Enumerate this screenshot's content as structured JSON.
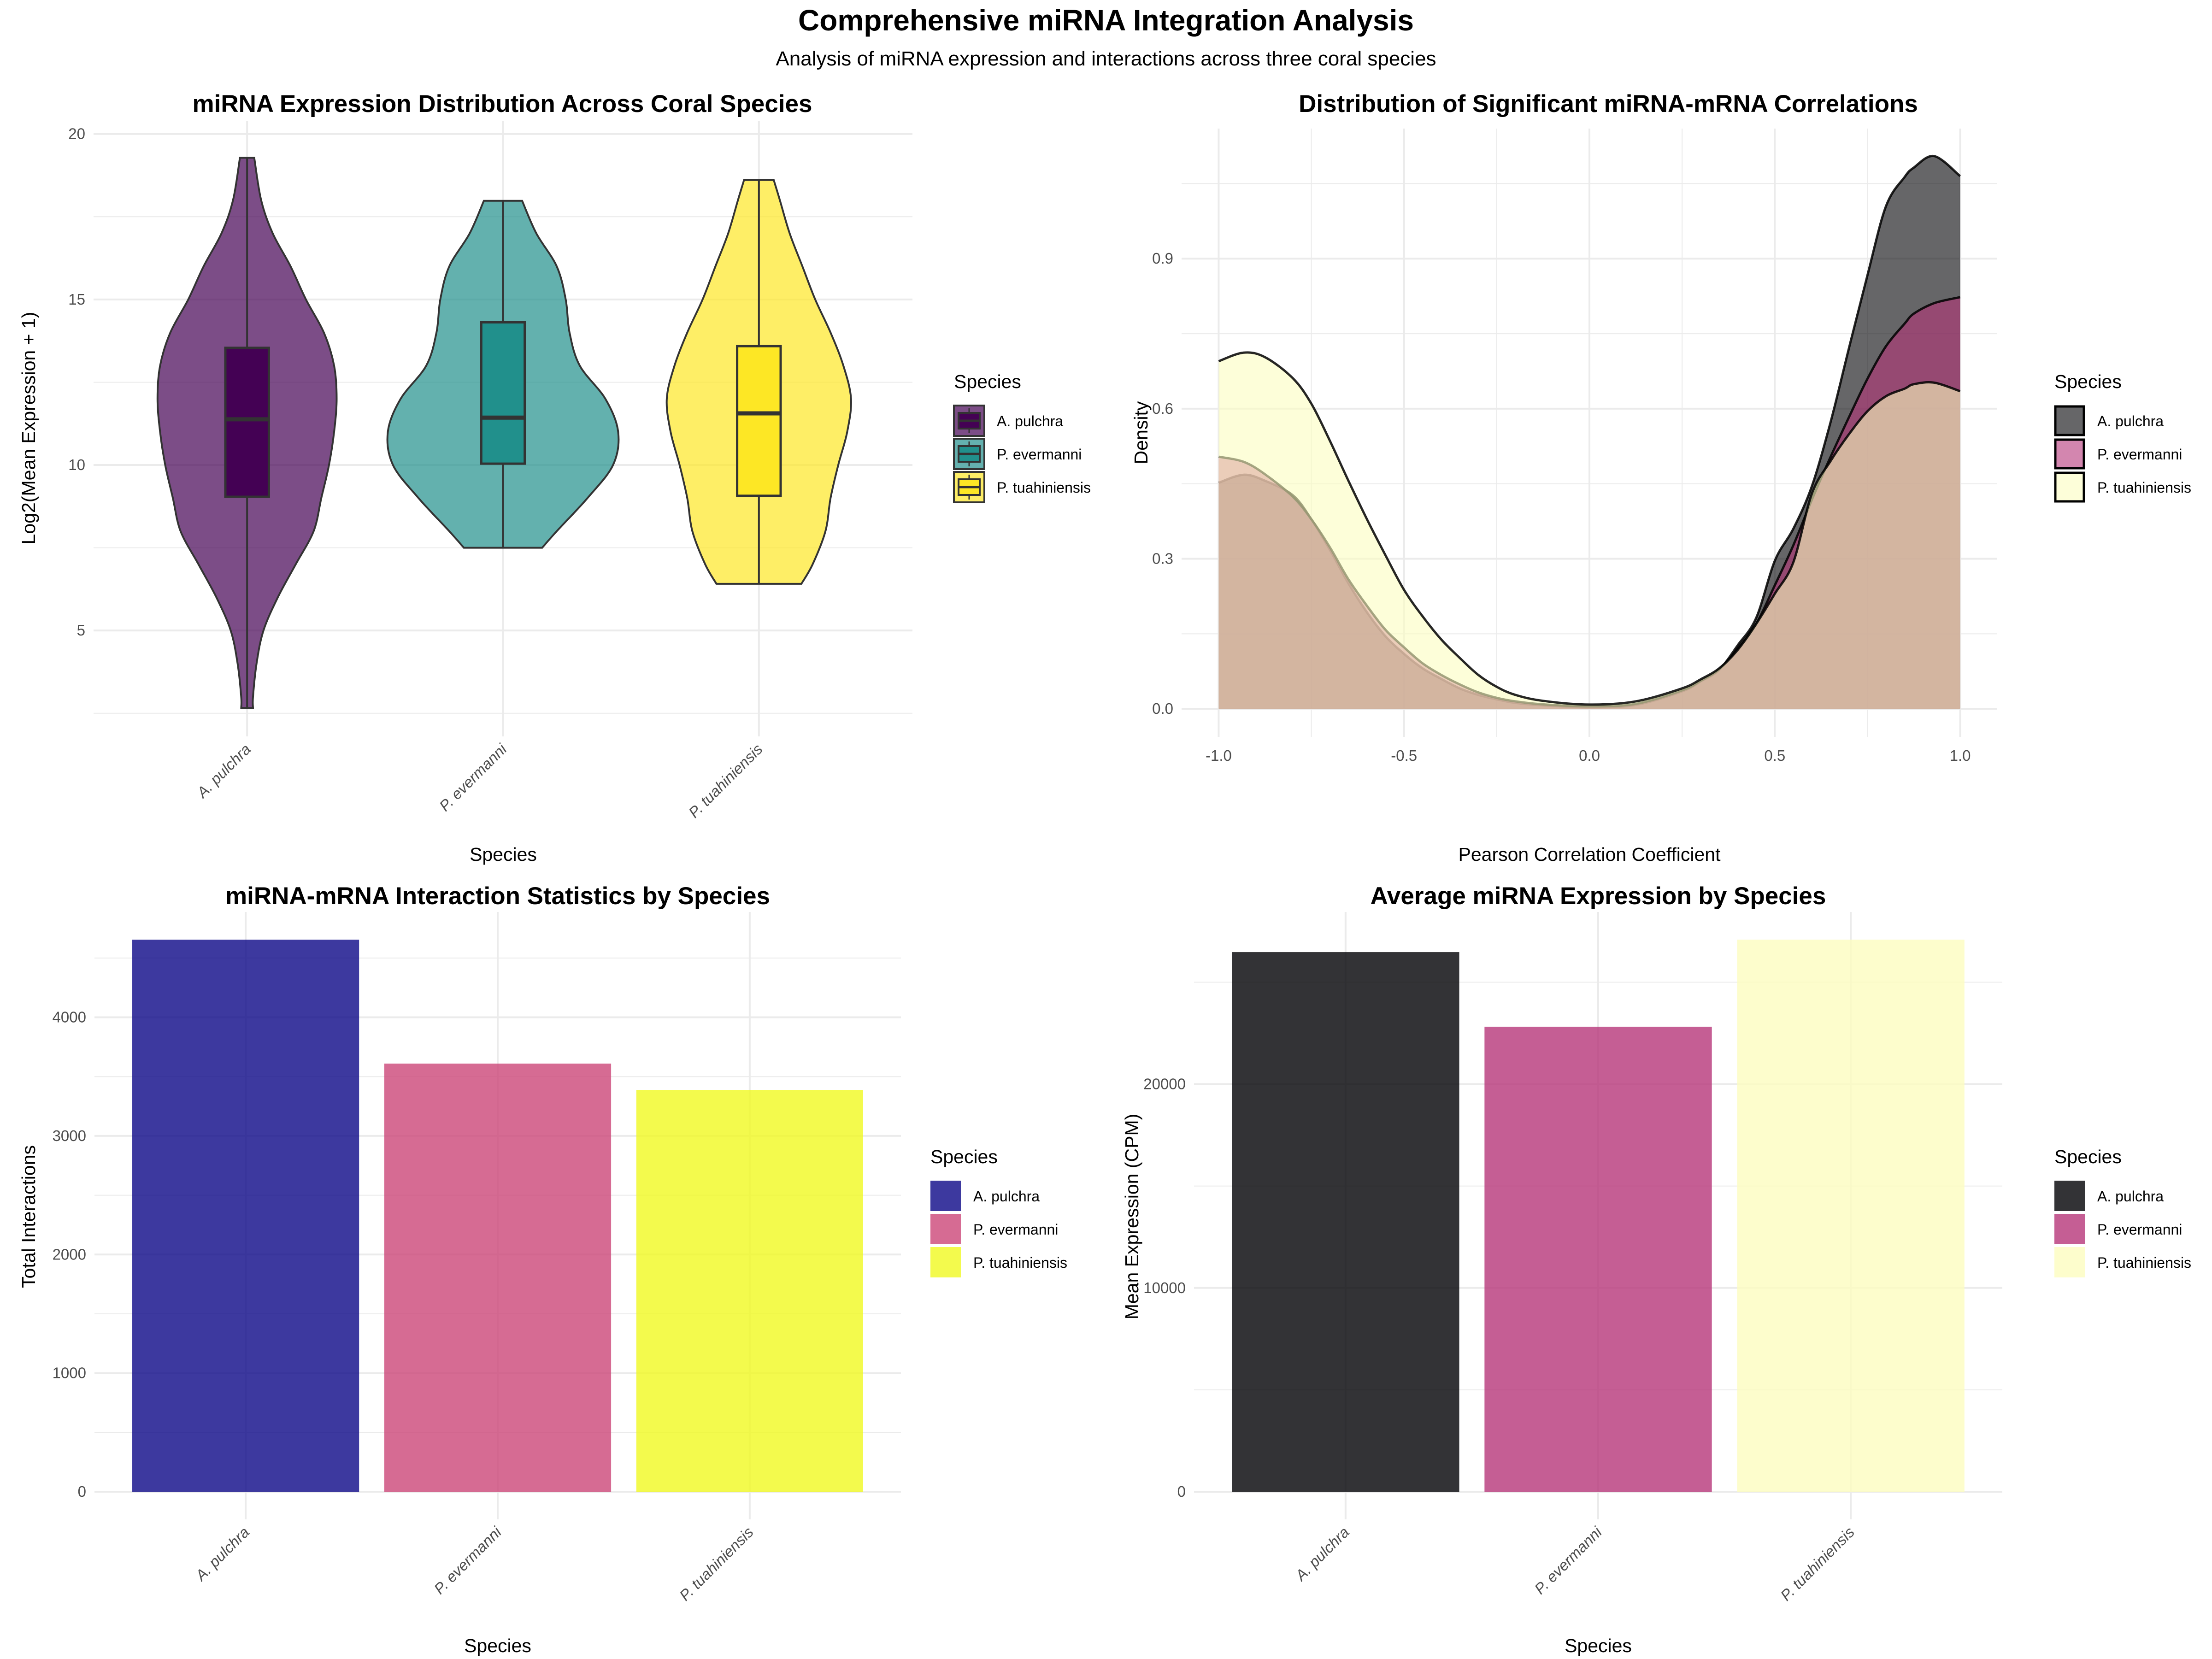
{
  "header": {
    "title": "Comprehensive miRNA Integration Analysis",
    "subtitle": "Analysis of miRNA expression and interactions across three coral species"
  },
  "species": [
    "A. pulchra",
    "P. evermanni",
    "P. tuahiniensis"
  ],
  "chart_data": [
    {
      "type": "violin",
      "title": "miRNA Expression Distribution Across Coral Species",
      "xlabel": "Species",
      "ylabel": "Log2(Mean Expression + 1)",
      "categories": [
        "A. pulchra",
        "P. evermanni",
        "P. tuahiniensis"
      ],
      "ylim": [
        1.8,
        20.4
      ],
      "yticks": [
        5,
        10,
        15,
        20
      ],
      "ytick_labels": [
        "5",
        "10",
        "15",
        "20"
      ],
      "grid": true,
      "legend": {
        "title": "Species",
        "position": "right"
      },
      "colors": [
        "#440154",
        "#21908C",
        "#FDE725"
      ],
      "fill_alpha": 0.7,
      "series": [
        {
          "name": "A. pulchra",
          "box": {
            "min": 2.66,
            "q1": 9.04,
            "median": 11.38,
            "q3": 13.54,
            "max": 19.28
          },
          "violin_profile": [
            [
              2.66,
              0.023
            ],
            [
              3.0,
              0.023
            ],
            [
              4.0,
              0.037
            ],
            [
              5.0,
              0.064
            ],
            [
              6.0,
              0.12
            ],
            [
              7.0,
              0.19
            ],
            [
              8.0,
              0.26
            ],
            [
              9.0,
              0.29
            ],
            [
              10.0,
              0.32
            ],
            [
              11.0,
              0.34
            ],
            [
              12.0,
              0.35
            ],
            [
              13.0,
              0.34
            ],
            [
              14.0,
              0.3
            ],
            [
              15.0,
              0.23
            ],
            [
              16.0,
              0.17
            ],
            [
              17.0,
              0.1
            ],
            [
              18.0,
              0.055
            ],
            [
              19.28,
              0.028
            ]
          ]
        },
        {
          "name": "P. evermanni",
          "box": {
            "min": 7.5,
            "q1": 10.04,
            "median": 11.43,
            "q3": 14.31,
            "max": 17.98
          },
          "violin_profile": [
            [
              7.5,
              0.153
            ],
            [
              8.0,
              0.21
            ],
            [
              9.0,
              0.33
            ],
            [
              10.0,
              0.43
            ],
            [
              11.0,
              0.45
            ],
            [
              12.0,
              0.4
            ],
            [
              13.0,
              0.3
            ],
            [
              14.0,
              0.26
            ],
            [
              15.0,
              0.245
            ],
            [
              16.0,
              0.21
            ],
            [
              17.0,
              0.13
            ],
            [
              17.98,
              0.075
            ]
          ]
        },
        {
          "name": "P. tuahiniensis",
          "box": {
            "min": 6.41,
            "q1": 9.07,
            "median": 11.56,
            "q3": 13.59,
            "max": 18.61
          },
          "violin_profile": [
            [
              6.41,
              0.166
            ],
            [
              7.0,
              0.21
            ],
            [
              8.0,
              0.26
            ],
            [
              9.0,
              0.28
            ],
            [
              10.0,
              0.31
            ],
            [
              11.0,
              0.345
            ],
            [
              12.0,
              0.36
            ],
            [
              13.0,
              0.33
            ],
            [
              14.0,
              0.28
            ],
            [
              15.0,
              0.22
            ],
            [
              16.0,
              0.17
            ],
            [
              17.0,
              0.12
            ],
            [
              18.0,
              0.082
            ],
            [
              18.61,
              0.058
            ]
          ]
        }
      ]
    },
    {
      "type": "area",
      "title": "Distribution of Significant miRNA-mRNA Correlations",
      "xlabel": "Pearson Correlation Coefficient",
      "ylabel": "Density",
      "xlim": [
        -1.1,
        1.1
      ],
      "ylim": [
        -0.056,
        1.16
      ],
      "xticks": [
        -1.0,
        -0.5,
        0.0,
        0.5,
        1.0
      ],
      "xtick_labels": [
        "-1.0",
        "-0.5",
        "0.0",
        "0.5",
        "1.0"
      ],
      "yticks": [
        0.0,
        0.3,
        0.6,
        0.9
      ],
      "ytick_labels": [
        "0.0",
        "0.3",
        "0.6",
        "0.9"
      ],
      "grid": true,
      "legend": {
        "title": "Species",
        "position": "right"
      },
      "colors": [
        "#000004",
        "#B63679",
        "#FCFDBF"
      ],
      "fill_alpha": 0.6,
      "x": [
        -1.0,
        -0.933,
        -0.875,
        -0.8,
        -0.75,
        -0.7,
        -0.65,
        -0.6,
        -0.55,
        -0.5,
        -0.45,
        -0.4,
        -0.35,
        -0.3,
        -0.25,
        -0.2,
        -0.125,
        0.0,
        0.125,
        0.25,
        0.3,
        0.35,
        0.4,
        0.45,
        0.5,
        0.55,
        0.6,
        0.65,
        0.7,
        0.75,
        0.8,
        0.85,
        0.875,
        0.93,
        1.0
      ],
      "series": [
        {
          "name": "A. pulchra",
          "values": [
            0.452,
            0.468,
            0.456,
            0.427,
            0.379,
            0.318,
            0.251,
            0.193,
            0.145,
            0.11,
            0.081,
            0.06,
            0.041,
            0.028,
            0.019,
            0.012,
            0.007,
            0.003,
            0.008,
            0.035,
            0.055,
            0.078,
            0.127,
            0.182,
            0.296,
            0.36,
            0.445,
            0.572,
            0.721,
            0.867,
            1.005,
            1.063,
            1.082,
            1.105,
            1.065
          ]
        },
        {
          "name": "P. evermanni",
          "values": [
            0.504,
            0.494,
            0.469,
            0.424,
            0.379,
            0.323,
            0.259,
            0.206,
            0.158,
            0.123,
            0.091,
            0.068,
            0.049,
            0.033,
            0.022,
            0.015,
            0.009,
            0.005,
            0.01,
            0.037,
            0.056,
            0.079,
            0.12,
            0.17,
            0.247,
            0.327,
            0.418,
            0.503,
            0.583,
            0.66,
            0.725,
            0.77,
            0.79,
            0.811,
            0.823
          ]
        },
        {
          "name": "P. tuahiniensis",
          "values": [
            0.695,
            0.712,
            0.703,
            0.661,
            0.61,
            0.536,
            0.456,
            0.379,
            0.307,
            0.238,
            0.185,
            0.139,
            0.102,
            0.068,
            0.044,
            0.028,
            0.016,
            0.0086,
            0.015,
            0.041,
            0.059,
            0.081,
            0.118,
            0.17,
            0.23,
            0.293,
            0.43,
            0.495,
            0.549,
            0.595,
            0.625,
            0.64,
            0.649,
            0.652,
            0.635
          ]
        }
      ]
    },
    {
      "type": "bar",
      "title": "miRNA-mRNA Interaction Statistics by Species",
      "xlabel": "Species",
      "ylabel": "Total Interactions",
      "categories": [
        "A. pulchra",
        "P. evermanni",
        "P. tuahiniensis"
      ],
      "values": [
        4655,
        3610,
        3388
      ],
      "ylim": [
        -233,
        4888
      ],
      "yticks": [
        0,
        1000,
        2000,
        3000,
        4000
      ],
      "ytick_labels": [
        "0",
        "1000",
        "2000",
        "3000",
        "4000"
      ],
      "grid": true,
      "legend": {
        "title": "Species",
        "position": "right"
      },
      "colors": [
        "#0D0887",
        "#CC4678",
        "#F0F921"
      ],
      "fill_alpha": 0.8
    },
    {
      "type": "bar",
      "title": "Average miRNA Expression by Species",
      "xlabel": "Species",
      "ylabel": "Mean Expression (CPM)",
      "categories": [
        "A. pulchra",
        "P. evermanni",
        "P. tuahiniensis"
      ],
      "values": [
        26477,
        22818,
        27091
      ],
      "ylim": [
        -1355,
        28446
      ],
      "yticks": [
        0,
        10000,
        20000
      ],
      "ytick_labels": [
        "0",
        "10000",
        "20000"
      ],
      "grid": true,
      "legend": {
        "title": "Species",
        "position": "right"
      },
      "colors": [
        "#000004",
        "#B63679",
        "#FCFDBF"
      ],
      "fill_alpha": 0.8
    }
  ]
}
